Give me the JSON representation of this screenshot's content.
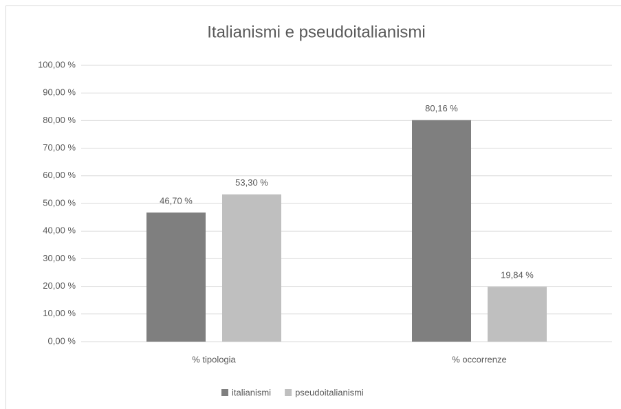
{
  "chart_data": {
    "type": "bar",
    "title": "Italianismi e pseudoitalianismi",
    "categories": [
      "% tipologia",
      "% occorrenze"
    ],
    "series": [
      {
        "name": "italianismi",
        "color": "#7f7f7f",
        "values": [
          46.7,
          80.16
        ],
        "value_labels": [
          "46,70 %",
          "80,16 %"
        ]
      },
      {
        "name": "pseudoitalianismi",
        "color": "#bfbfbf",
        "values": [
          53.3,
          19.84
        ],
        "value_labels": [
          "53,30 %",
          "19,84 %"
        ]
      }
    ],
    "ylim": [
      0,
      100
    ],
    "yticks": [
      {
        "value": 0,
        "label": "0,00 %"
      },
      {
        "value": 10,
        "label": "10,00 %"
      },
      {
        "value": 20,
        "label": "20,00 %"
      },
      {
        "value": 30,
        "label": "30,00 %"
      },
      {
        "value": 40,
        "label": "40,00 %"
      },
      {
        "value": 50,
        "label": "50,00 %"
      },
      {
        "value": 60,
        "label": "60,00 %"
      },
      {
        "value": 70,
        "label": "70,00 %"
      },
      {
        "value": 80,
        "label": "80,00 %"
      },
      {
        "value": 90,
        "label": "90,00 %"
      },
      {
        "value": 100,
        "label": "100,00 %"
      }
    ],
    "grid": true,
    "legend": "bottom"
  }
}
